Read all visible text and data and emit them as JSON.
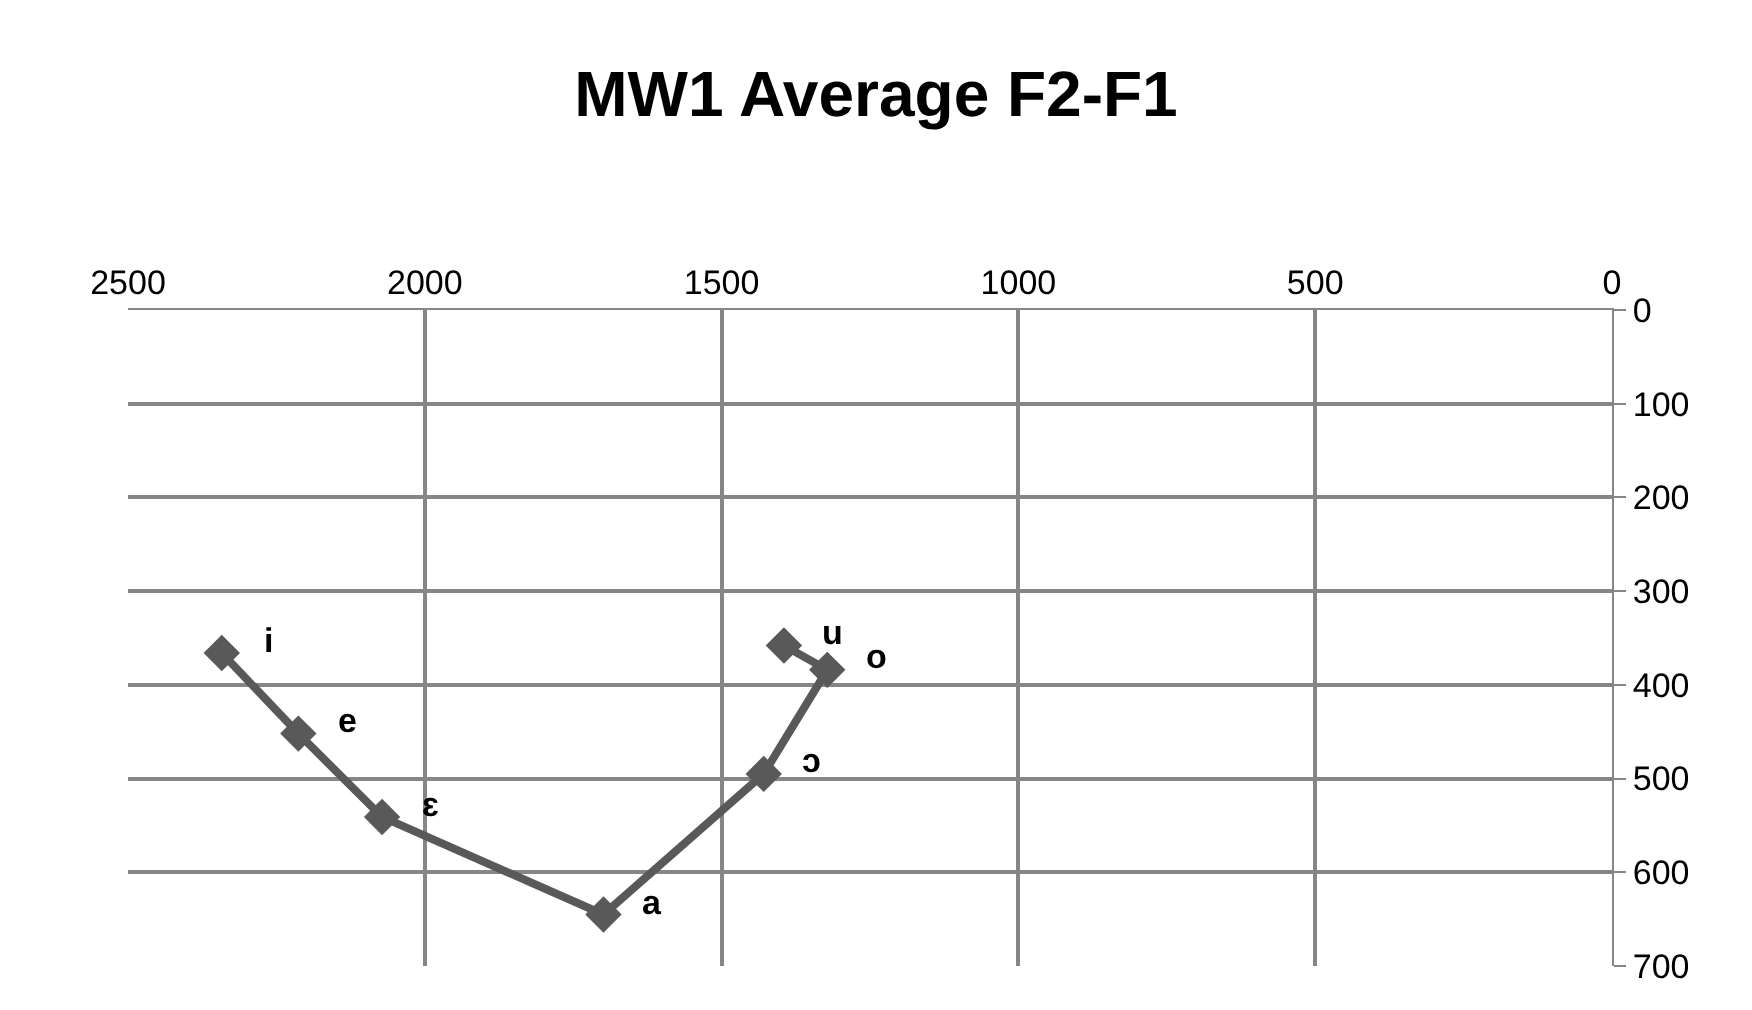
{
  "chart_data": {
    "type": "line",
    "title": "MW1 Average F2-F1",
    "x": [
      2342,
      2213,
      2072,
      1699,
      1429,
      1322,
      1395
    ],
    "series": [
      {
        "color": "#595959",
        "values": [
          366,
          452,
          541,
          645,
          495,
          384,
          358
        ]
      }
    ],
    "xlim": [
      2500,
      0
    ],
    "xticks": [
      2500,
      2000,
      1500,
      1000,
      500,
      0
    ],
    "ylim": [
      700,
      0
    ],
    "yticks": [
      0,
      100,
      200,
      300,
      400,
      500,
      600,
      700
    ],
    "grid": true,
    "marker": "diamond",
    "line_style": "solid",
    "annotations": [
      {
        "text": "i",
        "x": 2342,
        "y": 366
      },
      {
        "text": "e",
        "x": 2213,
        "y": 452
      },
      {
        "text": "ɛ",
        "x": 2072,
        "y": 541
      },
      {
        "text": "a",
        "x": 1699,
        "y": 645
      },
      {
        "text": "ɔ",
        "x": 1429,
        "y": 495
      },
      {
        "text": "o",
        "x": 1322,
        "y": 384
      },
      {
        "text": "u",
        "x": 1395,
        "y": 358
      }
    ]
  }
}
